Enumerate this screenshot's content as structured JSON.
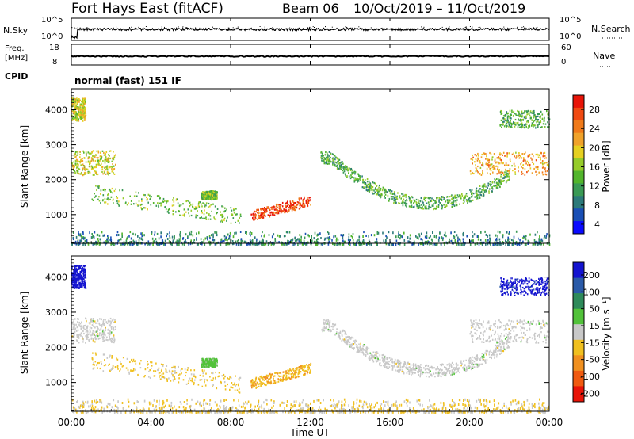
{
  "header": {
    "title": "Fort Hays East (fitACF)",
    "beam": "Beam 06",
    "date_range": "10/Oct/2019 – 11/Oct/2019"
  },
  "nsky_panel": {
    "left_label": "N.Sky",
    "right_label": "N.Search",
    "left_ticks": [
      "10^5",
      "10^0"
    ],
    "right_ticks": [
      "10^5",
      "10^0"
    ]
  },
  "freq_panel": {
    "left_label_1": "Freq.",
    "left_label_2": "[MHz]",
    "right_label": "Nave",
    "left_ticks": [
      "18",
      "8"
    ],
    "right_ticks": [
      "60",
      "0"
    ]
  },
  "cpid": {
    "label": "CPID",
    "text": "normal (fast) 151 IF"
  },
  "power_panel": {
    "ylabel": "Slant Range [km]",
    "yticks": [
      "4000",
      "3000",
      "2000",
      "1000"
    ],
    "colorbar_label": "Power [dB]",
    "colorbar_ticks": [
      "28",
      "24",
      "20",
      "16",
      "12",
      "8",
      "4"
    ],
    "colorbar_colors": [
      "#0a0aff",
      "#1a4fb5",
      "#2c7a7a",
      "#3a9a55",
      "#52b52c",
      "#96cc2a",
      "#e6d020",
      "#f0a22a",
      "#f07a1a",
      "#f04a12",
      "#e81408"
    ]
  },
  "velocity_panel": {
    "ylabel": "Slant Range [km]",
    "yticks": [
      "4000",
      "3000",
      "2000",
      "1000"
    ],
    "colorbar_label": "Velocity [m s⁻¹]",
    "colorbar_ticks": [
      "200",
      "100",
      "50",
      "15",
      "-15",
      "-50",
      "-100",
      "-200"
    ],
    "colorbar_colors": [
      "#1414d0",
      "#2a5aa8",
      "#2e8a5a",
      "#52c23a",
      "#c8c8c8",
      "#f0c020",
      "#f09020",
      "#f05a10",
      "#e81408"
    ]
  },
  "xaxis": {
    "label": "Time UT",
    "ticks": [
      "00:00",
      "04:00",
      "08:00",
      "12:00",
      "16:00",
      "20:00",
      "00:00"
    ]
  },
  "chart_data": {
    "type": "heatmap",
    "title": "Fort Hays East (fitACF)",
    "xlabel": "Time UT",
    "ylabel": "Slant Range [km]",
    "xlim": [
      0,
      24
    ],
    "ylim": [
      180,
      4600
    ],
    "power_clim": [
      0,
      32
    ],
    "velocity_clim": [
      -250,
      250
    ],
    "regions": [
      {
        "name": "far-range-early",
        "t": [
          0.0,
          0.7
        ],
        "r": [
          3700,
          4350
        ],
        "power": 18,
        "velocity": 230
      },
      {
        "name": "mid-range-early",
        "t": [
          0.0,
          2.2
        ],
        "r": [
          2150,
          2850
        ],
        "power": 18,
        "velocity": 0
      },
      {
        "name": "near-range-morning",
        "t": [
          1.0,
          8.5
        ],
        "r": [
          900,
          1700
        ],
        "power": 14,
        "velocity": -40
      },
      {
        "name": "spot-07",
        "t": [
          6.5,
          7.3
        ],
        "r": [
          1450,
          1700
        ],
        "power": 14,
        "velocity": 50
      },
      {
        "name": "strong-echo-noon",
        "t": [
          9.0,
          12.0
        ],
        "r": [
          950,
          1450
        ],
        "power": 28,
        "velocity": -70
      },
      {
        "name": "arc-afternoon",
        "t": [
          12.5,
          22.0
        ],
        "r": [
          1100,
          2850
        ],
        "power": 12,
        "velocity": 0
      },
      {
        "name": "mid-range-evening",
        "t": [
          20.0,
          24.0
        ],
        "r": [
          2150,
          2800
        ],
        "power": 22,
        "velocity": 0
      },
      {
        "name": "far-range-late",
        "t": [
          21.5,
          24.0
        ],
        "r": [
          3500,
          4000
        ],
        "power": 12,
        "velocity": 220
      },
      {
        "name": "ground-scatter-base",
        "t": [
          0.0,
          24.0
        ],
        "r": [
          180,
          550
        ],
        "power": 8,
        "velocity": -30
      }
    ]
  }
}
